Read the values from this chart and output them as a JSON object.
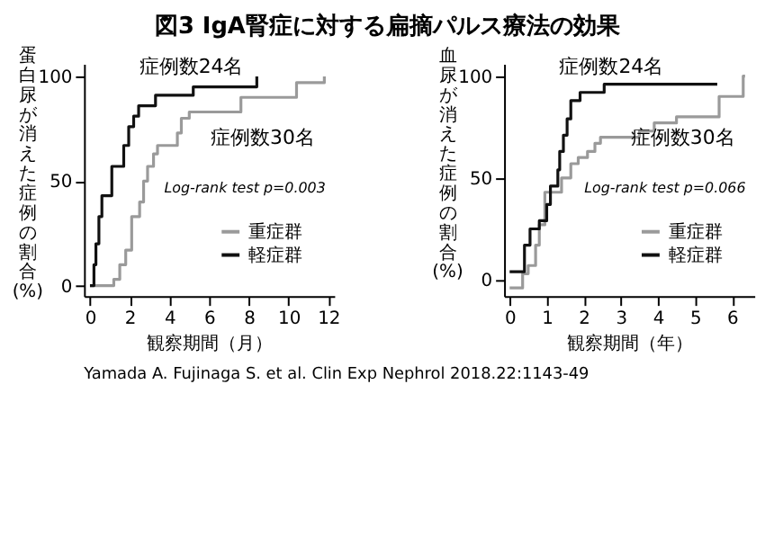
{
  "chart_data": [
    {
      "type": "step",
      "title": "図3 IgA腎症に対する扁摘パルス療法の効果",
      "xlabel": "観察期間（月）",
      "ylabel": "蛋白尿が消えた症例の割合(%)",
      "xlim": [
        -0.3,
        12.3
      ],
      "ylim": [
        -5,
        106
      ],
      "xticks": [
        0,
        2,
        4,
        6,
        8,
        10,
        12
      ],
      "yticks": [
        0,
        50,
        100
      ],
      "grid": false,
      "legend": "bottom right",
      "series": [
        {
          "name": "重症群",
          "color": "#9a9a9a",
          "x": [
            0,
            1.1,
            1.2,
            1.5,
            1.8,
            2.1,
            2.5,
            2.7,
            2.9,
            3.2,
            3.4,
            4.4,
            4.6,
            5.0,
            7.6,
            10.4,
            11.8
          ],
          "values": [
            0,
            0,
            3,
            10,
            17,
            33,
            40,
            50,
            57,
            63,
            67,
            73,
            80,
            83,
            90,
            97,
            100
          ]
        },
        {
          "name": "軽症群",
          "color": "#111111",
          "x": [
            0,
            0.2,
            0.3,
            0.45,
            0.6,
            1.1,
            1.7,
            1.95,
            2.2,
            2.45,
            3.3,
            5.2,
            8.4
          ],
          "values": [
            0,
            10,
            20,
            33,
            43,
            57,
            67,
            76,
            81,
            86,
            91,
            95,
            100
          ]
        }
      ],
      "annotations": [
        "症例数24名",
        "症例数30名",
        "Log-rank test p=0.003",
        "Yamada A. Fujinaga S. et al. Clin Exp Nephrol 2018.22:1143-49"
      ]
    },
    {
      "type": "step",
      "xlabel": "観察期間（年）",
      "ylabel": "血尿が消えた症例の割合(%)",
      "xlim": [
        -0.15,
        6.6
      ],
      "ylim": [
        -8,
        106
      ],
      "xticks": [
        0,
        1,
        2,
        3,
        4,
        5,
        6
      ],
      "yticks": [
        0,
        50,
        100
      ],
      "grid": false,
      "legend": "bottom right",
      "series": [
        {
          "name": "重症群",
          "color": "#9a9a9a",
          "x": [
            0,
            0.35,
            0.5,
            0.7,
            0.8,
            0.95,
            1.4,
            1.65,
            1.85,
            2.1,
            2.3,
            2.45,
            3.5,
            3.9,
            4.5,
            5.65,
            6.3,
            6.35
          ],
          "values": [
            -4,
            3,
            7,
            17,
            27,
            43,
            50,
            57,
            60,
            63,
            67,
            70,
            73,
            77,
            80,
            90,
            100,
            100
          ]
        },
        {
          "name": "軽症群",
          "color": "#111111",
          "x": [
            0,
            0.4,
            0.55,
            0.8,
            1.0,
            1.1,
            1.3,
            1.35,
            1.45,
            1.55,
            1.65,
            1.9,
            2.55,
            5.6
          ],
          "values": [
            4,
            17,
            25,
            29,
            37,
            46,
            54,
            63,
            71,
            79,
            88,
            92,
            96,
            96
          ]
        }
      ],
      "annotations": [
        "症例数24名",
        "症例数30名",
        "Log-rank test p=0.066"
      ]
    }
  ]
}
